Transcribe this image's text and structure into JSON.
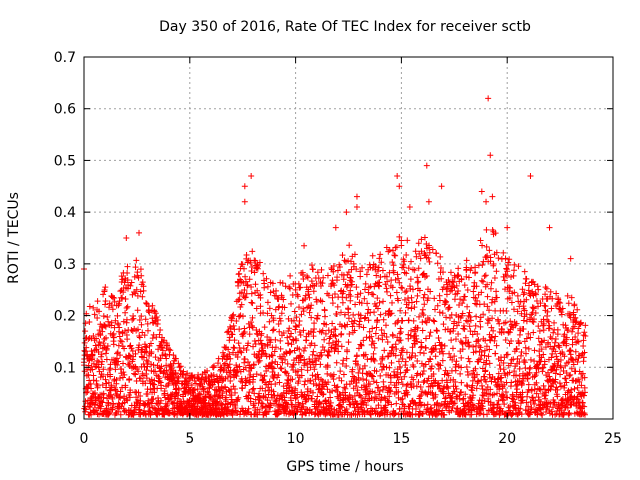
{
  "chart_data": {
    "type": "scatter",
    "title": "Day 350 of 2016, Rate Of TEC Index for receiver sctb",
    "xlabel": "GPS time / hours",
    "ylabel": "ROTI / TECUs",
    "xlim": [
      0,
      25
    ],
    "ylim": [
      0,
      0.7
    ],
    "xticks": [
      0,
      5,
      10,
      15,
      20,
      25
    ],
    "yticks": [
      0,
      0.1,
      0.2,
      0.3,
      0.4,
      0.5,
      0.6,
      0.7
    ],
    "xtick_labels": [
      "0",
      "5",
      "10",
      "15",
      "20",
      "25"
    ],
    "ytick_labels": [
      "0",
      "0.1",
      "0.2",
      "0.3",
      "0.4",
      "0.5",
      "0.6",
      "0.7"
    ],
    "grid": true,
    "marker": "plus",
    "marker_color": "#ff0000",
    "envelope_x": [
      0,
      0.5,
      1,
      1.5,
      2,
      2.5,
      3,
      3.5,
      4,
      4.5,
      5,
      5.5,
      6,
      6.5,
      7,
      7.5,
      8,
      8.5,
      9,
      9.5,
      10,
      10.5,
      11,
      11.5,
      12,
      12.5,
      13,
      13.5,
      14,
      14.5,
      15,
      15.5,
      16,
      16.5,
      17,
      17.5,
      18,
      18.5,
      19,
      19.5,
      20,
      20.5,
      21,
      21.5,
      22,
      22.5,
      23,
      23.5
    ],
    "envelope_y": [
      0.2,
      0.22,
      0.25,
      0.24,
      0.3,
      0.31,
      0.24,
      0.2,
      0.13,
      0.1,
      0.08,
      0.08,
      0.09,
      0.12,
      0.2,
      0.32,
      0.32,
      0.28,
      0.26,
      0.27,
      0.27,
      0.28,
      0.3,
      0.28,
      0.3,
      0.33,
      0.3,
      0.3,
      0.33,
      0.33,
      0.36,
      0.33,
      0.35,
      0.33,
      0.3,
      0.28,
      0.3,
      0.32,
      0.37,
      0.36,
      0.33,
      0.29,
      0.28,
      0.25,
      0.26,
      0.22,
      0.24,
      0.18
    ],
    "highlight_points": [
      {
        "x": 0.0,
        "y": 0.29
      },
      {
        "x": 2.0,
        "y": 0.35
      },
      {
        "x": 2.6,
        "y": 0.36
      },
      {
        "x": 7.6,
        "y": 0.45
      },
      {
        "x": 7.6,
        "y": 0.42
      },
      {
        "x": 7.9,
        "y": 0.47
      },
      {
        "x": 10.4,
        "y": 0.335
      },
      {
        "x": 11.9,
        "y": 0.37
      },
      {
        "x": 12.4,
        "y": 0.4
      },
      {
        "x": 12.9,
        "y": 0.43
      },
      {
        "x": 12.9,
        "y": 0.41
      },
      {
        "x": 14.8,
        "y": 0.47
      },
      {
        "x": 14.9,
        "y": 0.45
      },
      {
        "x": 15.4,
        "y": 0.41
      },
      {
        "x": 16.2,
        "y": 0.49
      },
      {
        "x": 16.3,
        "y": 0.42
      },
      {
        "x": 16.9,
        "y": 0.45
      },
      {
        "x": 18.8,
        "y": 0.44
      },
      {
        "x": 19.0,
        "y": 0.42
      },
      {
        "x": 19.1,
        "y": 0.62
      },
      {
        "x": 19.2,
        "y": 0.51
      },
      {
        "x": 19.3,
        "y": 0.43
      },
      {
        "x": 20.0,
        "y": 0.37
      },
      {
        "x": 21.1,
        "y": 0.47
      },
      {
        "x": 22.0,
        "y": 0.37
      },
      {
        "x": 23.0,
        "y": 0.31
      }
    ]
  }
}
